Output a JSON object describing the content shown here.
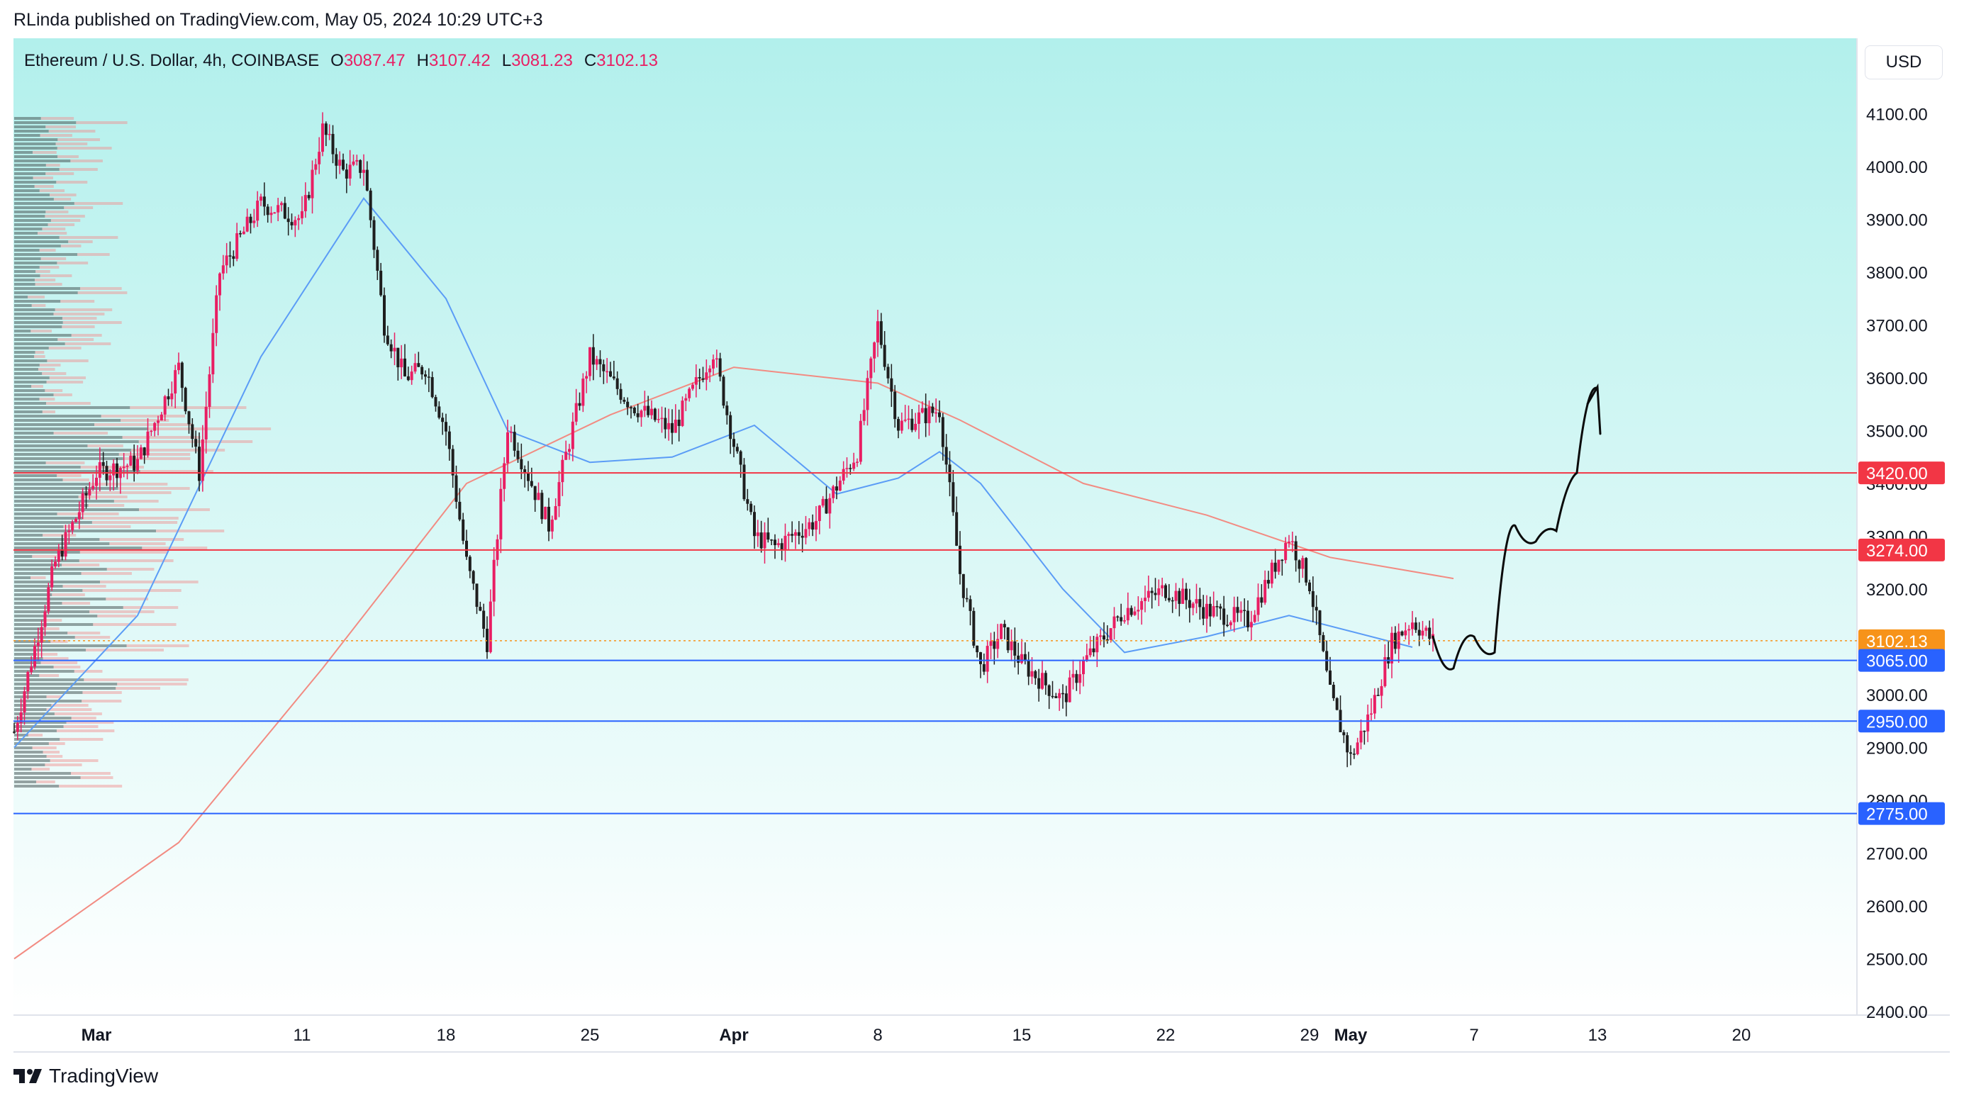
{
  "header": {
    "publisher_line": "RLinda published on TradingView.com, May 05, 2024 10:29 UTC+3"
  },
  "footer": {
    "brand": "TradingView"
  },
  "toolbar": {
    "currency": "USD"
  },
  "legend": {
    "symbol": "Ethereum / U.S. Dollar, 4h, COINBASE",
    "o_label": "O",
    "o_value": "3087.47",
    "h_label": "H",
    "h_value": "3107.42",
    "l_label": "L",
    "l_value": "3081.23",
    "c_label": "C",
    "c_value": "3102.13"
  },
  "colors": {
    "bg_top": "#b2f0ec",
    "bg_bottom": "#ffffff",
    "up_candle": "#e91e63",
    "down_candle": "#1e1e1e",
    "ma_fast": "#5b9cf6",
    "ma_slow": "#f28b82",
    "resistance": "#f23645",
    "support": "#2962ff",
    "current_price": "#f7931a"
  },
  "chart_data": {
    "type": "candlestick",
    "timeframe": "4h",
    "x_ticks": [
      "Mar",
      "11",
      "18",
      "25",
      "Apr",
      "8",
      "15",
      "22",
      "29",
      "May",
      "7",
      "13",
      "20"
    ],
    "y_ticks": [
      "2400.00",
      "2500.00",
      "2600.00",
      "2700.00",
      "2800.00",
      "2900.00",
      "3000.00",
      "3100.00",
      "3200.00",
      "3300.00",
      "3400.00",
      "3500.00",
      "3600.00",
      "3700.00",
      "3800.00",
      "3900.00",
      "4000.00",
      "4100.00"
    ],
    "ylim": [
      2400,
      4100
    ],
    "horizontal_levels": [
      {
        "value": 3420,
        "label": "3420.00",
        "kind": "resistance"
      },
      {
        "value": 3274,
        "label": "3274.00",
        "kind": "resistance"
      },
      {
        "value": 3102.13,
        "label": "3102.13",
        "kind": "current"
      },
      {
        "value": 3065,
        "label": "3065.00",
        "kind": "support"
      },
      {
        "value": 2950,
        "label": "2950.00",
        "kind": "support"
      },
      {
        "value": 2775,
        "label": "2775.00",
        "kind": "support"
      }
    ],
    "price_path": [
      [
        "2024-02-26",
        2930
      ],
      [
        "2024-02-28",
        3250
      ],
      [
        "2024-03-01",
        3420
      ],
      [
        "2024-03-03",
        3440
      ],
      [
        "2024-03-05",
        3620
      ],
      [
        "2024-03-06",
        3420
      ],
      [
        "2024-03-07",
        3800
      ],
      [
        "2024-03-09",
        3930
      ],
      [
        "2024-03-11",
        3900
      ],
      [
        "2024-03-12",
        4070
      ],
      [
        "2024-03-13",
        3990
      ],
      [
        "2024-03-14",
        4000
      ],
      [
        "2024-03-15",
        3700
      ],
      [
        "2024-03-16",
        3600
      ],
      [
        "2024-03-17",
        3620
      ],
      [
        "2024-03-18",
        3500
      ],
      [
        "2024-03-19",
        3250
      ],
      [
        "2024-03-20",
        3100
      ],
      [
        "2024-03-21",
        3510
      ],
      [
        "2024-03-23",
        3320
      ],
      [
        "2024-03-25",
        3640
      ],
      [
        "2024-03-27",
        3550
      ],
      [
        "2024-03-29",
        3500
      ],
      [
        "2024-03-31",
        3650
      ],
      [
        "2024-04-02",
        3300
      ],
      [
        "2024-04-03",
        3280
      ],
      [
        "2024-04-05",
        3330
      ],
      [
        "2024-04-07",
        3460
      ],
      [
        "2024-04-08",
        3700
      ],
      [
        "2024-04-09",
        3510
      ],
      [
        "2024-04-11",
        3540
      ],
      [
        "2024-04-12",
        3230
      ],
      [
        "2024-04-13",
        3050
      ],
      [
        "2024-04-14",
        3120
      ],
      [
        "2024-04-15",
        3060
      ],
      [
        "2024-04-17",
        2990
      ],
      [
        "2024-04-18",
        3060
      ],
      [
        "2024-04-20",
        3160
      ],
      [
        "2024-04-22",
        3200
      ],
      [
        "2024-04-24",
        3160
      ],
      [
        "2024-04-26",
        3140
      ],
      [
        "2024-04-28",
        3300
      ],
      [
        "2024-04-29",
        3210
      ],
      [
        "2024-04-30",
        3000
      ],
      [
        "2024-05-01",
        2880
      ],
      [
        "2024-05-02",
        2970
      ],
      [
        "2024-05-03",
        3100
      ],
      [
        "2024-05-04",
        3140
      ],
      [
        "2024-05-05",
        3102
      ]
    ],
    "ma_fast_path": [
      [
        "2024-02-26",
        2900
      ],
      [
        "2024-03-03",
        3150
      ],
      [
        "2024-03-09",
        3640
      ],
      [
        "2024-03-14",
        3940
      ],
      [
        "2024-03-18",
        3750
      ],
      [
        "2024-03-21",
        3500
      ],
      [
        "2024-03-25",
        3440
      ],
      [
        "2024-03-29",
        3450
      ],
      [
        "2024-04-02",
        3510
      ],
      [
        "2024-04-06",
        3380
      ],
      [
        "2024-04-09",
        3410
      ],
      [
        "2024-04-11",
        3460
      ],
      [
        "2024-04-13",
        3400
      ],
      [
        "2024-04-17",
        3200
      ],
      [
        "2024-04-20",
        3080
      ],
      [
        "2024-04-24",
        3110
      ],
      [
        "2024-04-28",
        3150
      ],
      [
        "2024-05-01",
        3120
      ],
      [
        "2024-05-04",
        3090
      ]
    ],
    "ma_slow_path": [
      [
        "2024-02-26",
        2500
      ],
      [
        "2024-03-05",
        2720
      ],
      [
        "2024-03-12",
        3050
      ],
      [
        "2024-03-19",
        3400
      ],
      [
        "2024-03-26",
        3530
      ],
      [
        "2024-04-01",
        3620
      ],
      [
        "2024-04-08",
        3590
      ],
      [
        "2024-04-12",
        3520
      ],
      [
        "2024-04-18",
        3400
      ],
      [
        "2024-04-24",
        3340
      ],
      [
        "2024-04-30",
        3260
      ],
      [
        "2024-05-06",
        3220
      ]
    ],
    "projection_path": [
      [
        "2024-05-05",
        3110
      ],
      [
        "2024-05-06",
        3050
      ],
      [
        "2024-05-07",
        3110
      ],
      [
        "2024-05-08",
        3080
      ],
      [
        "2024-05-09",
        3320
      ],
      [
        "2024-05-10",
        3290
      ],
      [
        "2024-05-11",
        3310
      ],
      [
        "2024-05-12",
        3420
      ],
      [
        "2024-05-13",
        3580
      ]
    ]
  }
}
